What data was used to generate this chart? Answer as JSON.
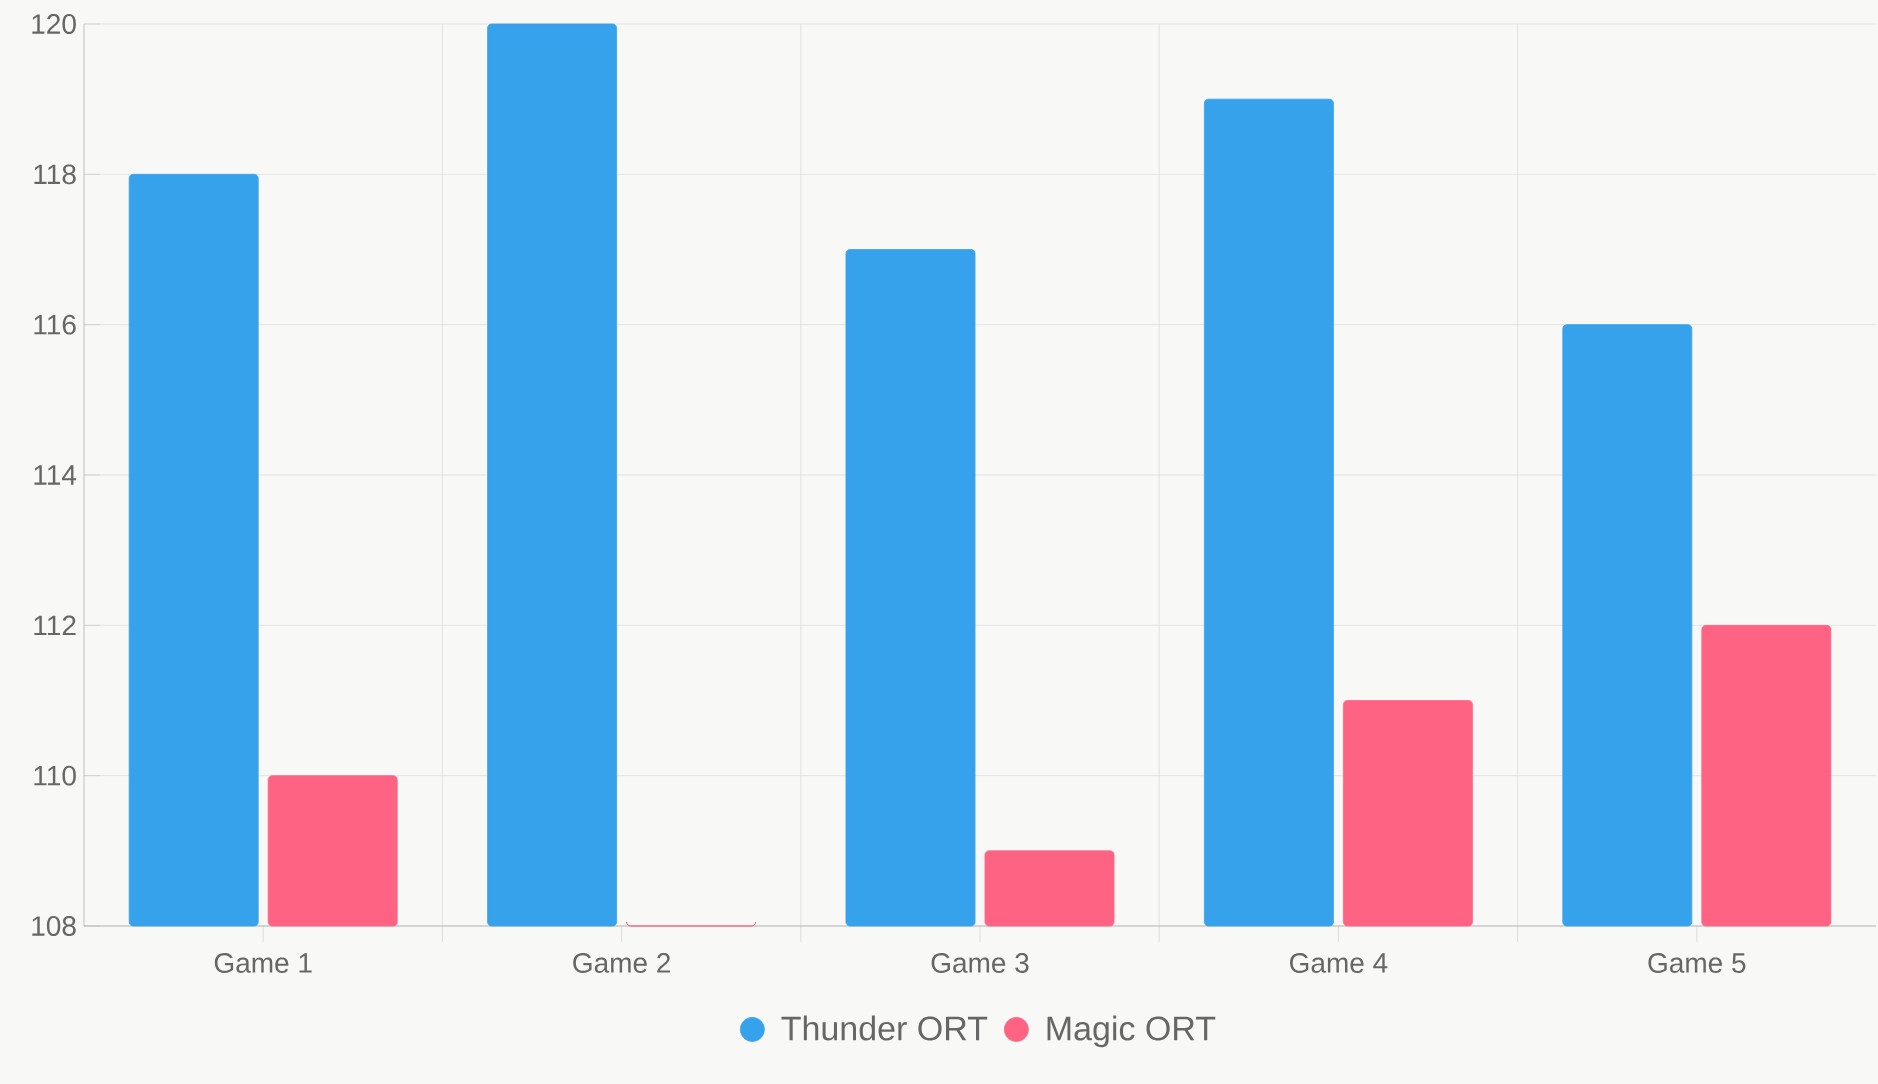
{
  "chart_data": {
    "type": "bar",
    "categories": [
      "Game 1",
      "Game 2",
      "Game 3",
      "Game 4",
      "Game 5"
    ],
    "series": [
      {
        "name": "Thunder ORT",
        "color": "#36a2eb",
        "values": [
          118,
          120,
          117,
          119,
          116
        ]
      },
      {
        "name": "Magic ORT",
        "color": "#ff6384",
        "values": [
          110,
          108,
          109,
          111,
          112
        ]
      }
    ],
    "ylim": [
      108,
      120
    ],
    "yticks": [
      108,
      110,
      112,
      114,
      116,
      118,
      120
    ],
    "grid": true,
    "legend": "bottom"
  }
}
